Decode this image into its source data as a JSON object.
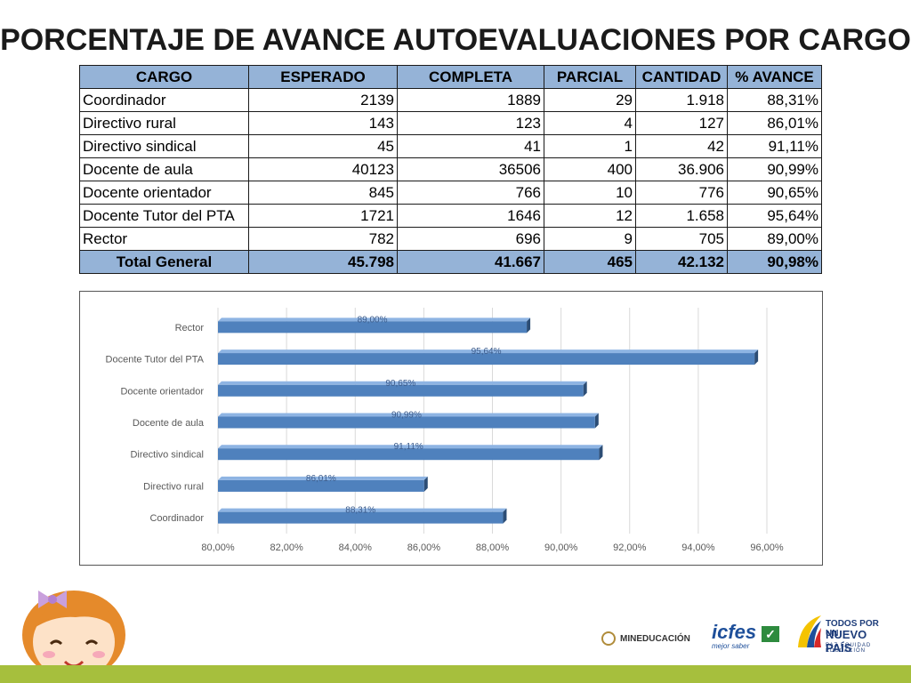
{
  "title": "PORCENTAJE DE AVANCE AUTOEVALUACIONES POR CARGO",
  "table": {
    "headers": [
      "CARGO",
      "ESPERADO",
      "COMPLETA",
      "PARCIAL",
      "CANTIDAD",
      "% AVANCE"
    ],
    "rows": [
      [
        "Coordinador",
        "2139",
        "1889",
        "29",
        "1.918",
        "88,31%"
      ],
      [
        "Directivo rural",
        "143",
        "123",
        "4",
        "127",
        "86,01%"
      ],
      [
        "Directivo sindical",
        "45",
        "41",
        "1",
        "42",
        "91,11%"
      ],
      [
        "Docente de aula",
        "40123",
        "36506",
        "400",
        "36.906",
        "90,99%"
      ],
      [
        "Docente orientador",
        "845",
        "766",
        "10",
        "776",
        "90,65%"
      ],
      [
        "Docente Tutor del PTA",
        "1721",
        "1646",
        "12",
        "1.658",
        "95,64%"
      ],
      [
        "Rector",
        "782",
        "696",
        "9",
        "705",
        "89,00%"
      ]
    ],
    "total": [
      "Total General",
      "45.798",
      "41.667",
      "465",
      "42.132",
      "90,98%"
    ]
  },
  "chart_data": {
    "type": "bar",
    "orientation": "horizontal",
    "categories": [
      "Coordinador",
      "Directivo rural",
      "Directivo sindical",
      "Docente de aula",
      "Docente orientador",
      "Docente Tutor del PTA",
      "Rector"
    ],
    "values": [
      88.31,
      86.01,
      91.11,
      90.99,
      90.65,
      95.64,
      89.0
    ],
    "data_labels": [
      "88,31%",
      "86,01%",
      "91,11%",
      "90,99%",
      "90,65%",
      "95,64%",
      "89,00%"
    ],
    "xlim": [
      80,
      96
    ],
    "x_ticks": [
      "80,00%",
      "82,00%",
      "84,00%",
      "86,00%",
      "88,00%",
      "90,00%",
      "92,00%",
      "94,00%",
      "96,00%"
    ],
    "grid": true,
    "bar_color": "#4f81bd"
  },
  "logos": {
    "mineducacion": "MINEDUCACIÓN",
    "icfes": "icfes",
    "icfes_sub": "mejor saber",
    "todos_line1": "TODOS POR UN",
    "todos_line2": "NUEVO PAÍS",
    "todos_line3": "PAZ EQUIDAD EDUCACIÓN"
  },
  "colors": {
    "header_fill": "#95b3d7",
    "footer_bar": "#a6bf3d"
  }
}
